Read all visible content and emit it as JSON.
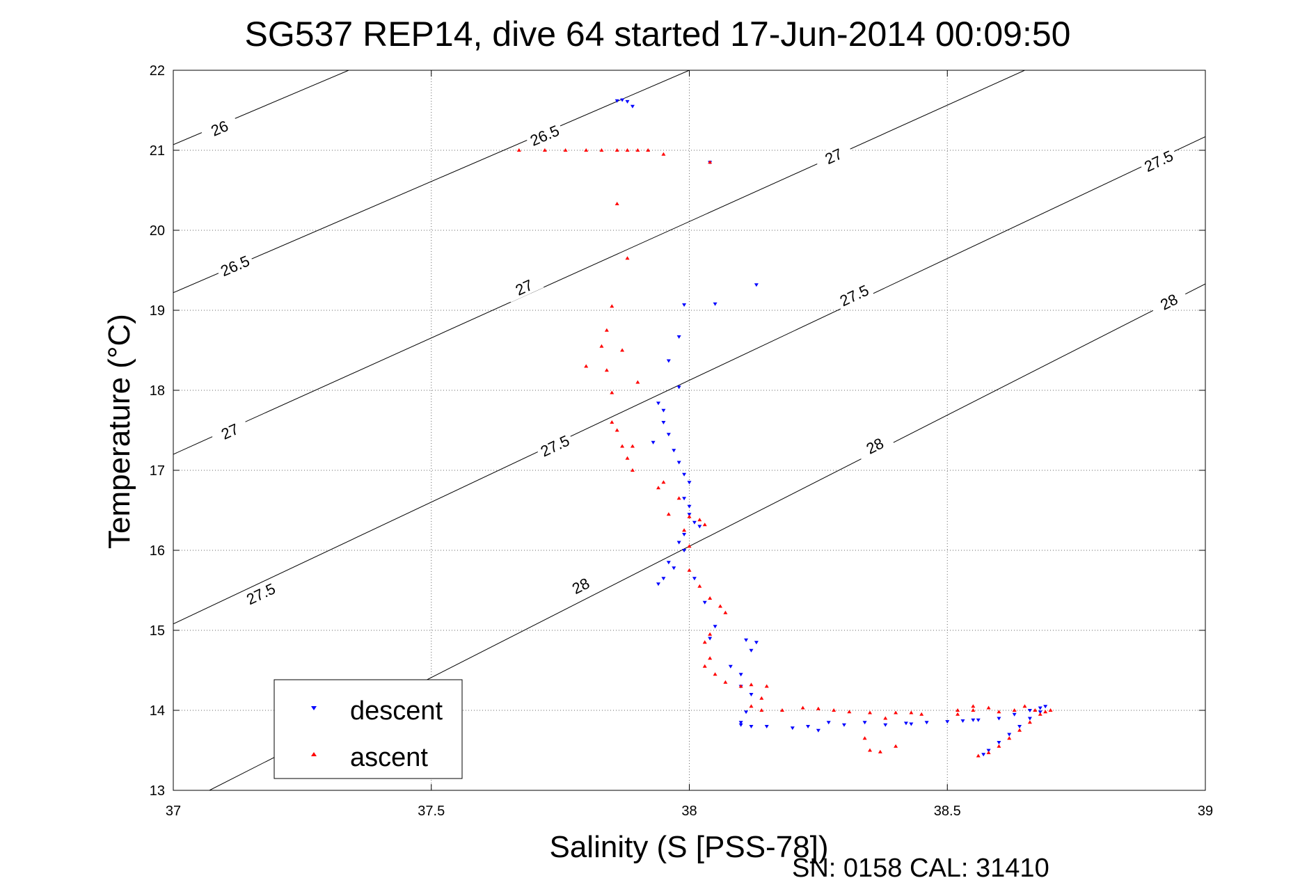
{
  "chart_data": {
    "type": "scatter",
    "title": "SG537 REP14, dive 64 started 17-Jun-2014 00:09:50",
    "xlabel": "Salinity (S [PSS-78])",
    "ylabel": "Temperature (°C)",
    "xlim": [
      37,
      39
    ],
    "ylim": [
      13,
      22
    ],
    "x_ticks": [
      "37",
      "37.5",
      "38",
      "38.5",
      "39"
    ],
    "y_ticks": [
      "13",
      "14",
      "15",
      "16",
      "17",
      "18",
      "19",
      "20",
      "21",
      "22"
    ],
    "grid": true,
    "legend_position": "bottom-left",
    "footer": "SN: 0158  CAL: 31410",
    "colors": {
      "descent": "#0000ff",
      "ascent": "#ff0000",
      "contour": "#000000"
    },
    "contours": [
      {
        "label": "26",
        "points": [
          [
            37,
            21.07
          ],
          [
            37.34,
            22
          ]
        ],
        "labels": [
          {
            "text": "26",
            "at": [
              37.09,
              21.27
            ]
          }
        ]
      },
      {
        "label": "26.5",
        "points": [
          [
            37,
            19.22
          ],
          [
            38,
            22
          ]
        ],
        "labels": [
          {
            "text": "26.5",
            "at": [
              37.12,
              19.55
            ]
          },
          {
            "text": "26.5",
            "at": [
              37.72,
              21.18
            ]
          }
        ]
      },
      {
        "label": "27",
        "points": [
          [
            37,
            17.2
          ],
          [
            38.65,
            22
          ]
        ],
        "labels": [
          {
            "text": "27",
            "at": [
              37.11,
              17.48
            ]
          },
          {
            "text": "27",
            "at": [
              37.68,
              19.28
            ]
          },
          {
            "text": "27",
            "at": [
              38.28,
              20.92
            ]
          }
        ]
      },
      {
        "label": "27.5",
        "points": [
          [
            37,
            15.08
          ],
          [
            39,
            21.17
          ]
        ],
        "labels": [
          {
            "text": "27.5",
            "at": [
              37.17,
              15.45
            ]
          },
          {
            "text": "27.5",
            "at": [
              37.74,
              17.3
            ]
          },
          {
            "text": "27.5",
            "at": [
              38.32,
              19.18
            ]
          },
          {
            "text": "27.5",
            "at": [
              38.91,
              20.86
            ]
          }
        ]
      },
      {
        "label": "28",
        "points": [
          [
            37.07,
            13
          ],
          [
            39,
            19.33
          ]
        ],
        "labels": [
          {
            "text": "28",
            "at": [
              37.79,
              15.55
            ]
          },
          {
            "text": "28",
            "at": [
              38.36,
              17.3
            ]
          },
          {
            "text": "28",
            "at": [
              38.93,
              19.1
            ]
          }
        ]
      }
    ],
    "series": [
      {
        "name": "descent",
        "marker": "triangle-down",
        "points": [
          [
            37.86,
            21.62
          ],
          [
            37.87,
            21.63
          ],
          [
            37.88,
            21.61
          ],
          [
            37.89,
            21.55
          ],
          [
            38.04,
            20.85
          ],
          [
            38.13,
            19.32
          ],
          [
            38.05,
            19.08
          ],
          [
            37.99,
            19.07
          ],
          [
            37.98,
            18.67
          ],
          [
            37.96,
            18.37
          ],
          [
            37.98,
            18.04
          ],
          [
            37.94,
            17.84
          ],
          [
            37.95,
            17.75
          ],
          [
            37.95,
            17.6
          ],
          [
            37.96,
            17.45
          ],
          [
            37.93,
            17.35
          ],
          [
            37.97,
            17.25
          ],
          [
            37.98,
            17.1
          ],
          [
            37.99,
            16.95
          ],
          [
            38.0,
            16.85
          ],
          [
            37.99,
            16.65
          ],
          [
            38.0,
            16.55
          ],
          [
            38.0,
            16.45
          ],
          [
            38.01,
            16.35
          ],
          [
            38.02,
            16.3
          ],
          [
            37.99,
            16.2
          ],
          [
            37.98,
            16.1
          ],
          [
            37.99,
            16.0
          ],
          [
            37.96,
            15.85
          ],
          [
            37.97,
            15.78
          ],
          [
            37.95,
            15.65
          ],
          [
            37.94,
            15.58
          ],
          [
            38.01,
            15.65
          ],
          [
            38.03,
            15.35
          ],
          [
            38.05,
            15.05
          ],
          [
            38.04,
            14.9
          ],
          [
            38.11,
            14.88
          ],
          [
            38.13,
            14.85
          ],
          [
            38.12,
            14.75
          ],
          [
            38.08,
            14.55
          ],
          [
            38.1,
            14.45
          ],
          [
            38.1,
            14.3
          ],
          [
            38.12,
            14.2
          ],
          [
            38.11,
            13.98
          ],
          [
            38.1,
            13.85
          ],
          [
            38.1,
            13.82
          ],
          [
            38.12,
            13.8
          ],
          [
            38.15,
            13.8
          ],
          [
            38.2,
            13.78
          ],
          [
            38.23,
            13.8
          ],
          [
            38.27,
            13.85
          ],
          [
            38.3,
            13.82
          ],
          [
            38.34,
            13.85
          ],
          [
            38.38,
            13.82
          ],
          [
            38.42,
            13.84
          ],
          [
            38.46,
            13.85
          ],
          [
            38.5,
            13.86
          ],
          [
            38.53,
            13.87
          ],
          [
            38.56,
            13.88
          ],
          [
            38.6,
            13.9
          ],
          [
            38.63,
            13.95
          ],
          [
            38.66,
            14.0
          ],
          [
            38.68,
            14.03
          ],
          [
            38.69,
            14.05
          ],
          [
            38.68,
            13.98
          ],
          [
            38.66,
            13.9
          ],
          [
            38.64,
            13.8
          ],
          [
            38.62,
            13.7
          ],
          [
            38.6,
            13.6
          ],
          [
            38.58,
            13.5
          ],
          [
            38.57,
            13.45
          ],
          [
            38.55,
            13.88
          ],
          [
            38.43,
            13.83
          ],
          [
            38.25,
            13.75
          ]
        ]
      },
      {
        "name": "ascent",
        "marker": "triangle-up",
        "points": [
          [
            37.67,
            21.0
          ],
          [
            37.72,
            21.0
          ],
          [
            37.76,
            21.0
          ],
          [
            37.8,
            21.0
          ],
          [
            37.83,
            21.0
          ],
          [
            37.86,
            21.0
          ],
          [
            37.88,
            21.0
          ],
          [
            37.9,
            21.0
          ],
          [
            37.92,
            21.0
          ],
          [
            37.95,
            20.95
          ],
          [
            38.04,
            20.85
          ],
          [
            37.86,
            20.33
          ],
          [
            37.88,
            19.65
          ],
          [
            37.85,
            19.05
          ],
          [
            37.84,
            18.75
          ],
          [
            37.83,
            18.55
          ],
          [
            37.87,
            18.5
          ],
          [
            37.8,
            18.3
          ],
          [
            37.84,
            18.25
          ],
          [
            37.9,
            18.1
          ],
          [
            37.85,
            17.97
          ],
          [
            37.85,
            17.6
          ],
          [
            37.86,
            17.5
          ],
          [
            37.87,
            17.3
          ],
          [
            37.89,
            17.3
          ],
          [
            37.88,
            17.15
          ],
          [
            37.89,
            17.0
          ],
          [
            37.95,
            16.85
          ],
          [
            37.94,
            16.78
          ],
          [
            37.98,
            16.65
          ],
          [
            37.96,
            16.45
          ],
          [
            38.0,
            16.42
          ],
          [
            38.02,
            16.38
          ],
          [
            38.03,
            16.32
          ],
          [
            37.99,
            16.25
          ],
          [
            38.0,
            16.05
          ],
          [
            38.0,
            15.75
          ],
          [
            38.02,
            15.55
          ],
          [
            38.04,
            15.4
          ],
          [
            38.06,
            15.3
          ],
          [
            38.07,
            15.22
          ],
          [
            38.04,
            14.95
          ],
          [
            38.03,
            14.85
          ],
          [
            38.04,
            14.65
          ],
          [
            38.03,
            14.55
          ],
          [
            38.05,
            14.45
          ],
          [
            38.07,
            14.35
          ],
          [
            38.1,
            14.3
          ],
          [
            38.12,
            14.32
          ],
          [
            38.15,
            14.3
          ],
          [
            38.14,
            14.15
          ],
          [
            38.12,
            14.05
          ],
          [
            38.14,
            14.0
          ],
          [
            38.18,
            14.0
          ],
          [
            38.22,
            14.03
          ],
          [
            38.25,
            14.02
          ],
          [
            38.28,
            14.0
          ],
          [
            38.31,
            13.98
          ],
          [
            38.35,
            13.97
          ],
          [
            38.4,
            13.97
          ],
          [
            38.43,
            13.97
          ],
          [
            38.45,
            13.95
          ],
          [
            38.38,
            13.9
          ],
          [
            38.34,
            13.65
          ],
          [
            38.35,
            13.5
          ],
          [
            38.37,
            13.48
          ],
          [
            38.4,
            13.55
          ],
          [
            38.52,
            14.0
          ],
          [
            38.55,
            14.05
          ],
          [
            38.58,
            14.03
          ],
          [
            38.6,
            13.98
          ],
          [
            38.63,
            14.0
          ],
          [
            38.65,
            14.05
          ],
          [
            38.67,
            14.0
          ],
          [
            38.68,
            13.95
          ],
          [
            38.66,
            13.85
          ],
          [
            38.64,
            13.75
          ],
          [
            38.62,
            13.65
          ],
          [
            38.6,
            13.55
          ],
          [
            38.58,
            13.47
          ],
          [
            38.56,
            13.43
          ],
          [
            38.69,
            13.98
          ],
          [
            38.7,
            14.0
          ],
          [
            38.55,
            14.0
          ],
          [
            38.52,
            13.95
          ]
        ]
      }
    ]
  }
}
